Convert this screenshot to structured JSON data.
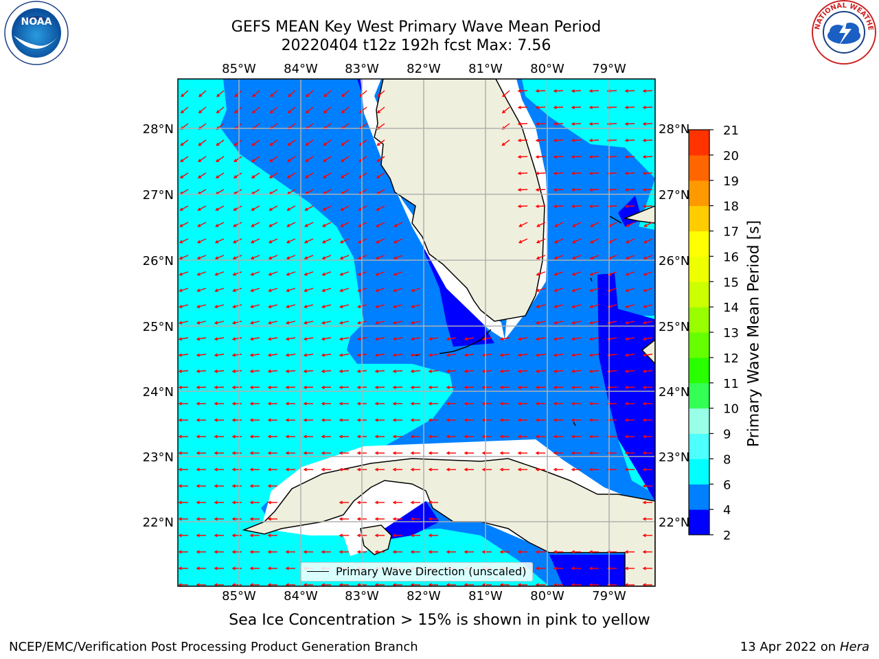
{
  "title": {
    "line1": "GEFS MEAN Key West Primary Wave Mean Period",
    "line2": "20220404 t12z 192h fcst   Max: 7.56"
  },
  "map": {
    "lon_labels": [
      "85°W",
      "84°W",
      "83°W",
      "82°W",
      "81°W",
      "80°W",
      "79°W"
    ],
    "lat_labels": [
      "28°N",
      "27°N",
      "26°N",
      "25°N",
      "24°N",
      "23°N",
      "22°N"
    ],
    "legend_label": "Primary Wave Direction (unscaled)",
    "colors": {
      "ocean_light": "#00ffff",
      "ocean_mid": "#0080ff",
      "ocean_dark": "#0000ff",
      "land": "#efefdd",
      "arrow": "#ff0000",
      "grid": "#b0b0b0"
    }
  },
  "colorbar": {
    "label": "Primary Wave Mean Period [s]",
    "ticks": [
      "2",
      "4",
      "6",
      "8",
      "9",
      "10",
      "11",
      "12",
      "13",
      "14",
      "15",
      "16",
      "17",
      "18",
      "19",
      "20",
      "21"
    ],
    "colors": [
      "#0000ff",
      "#0080ff",
      "#00ffff",
      "#4dffff",
      "#99ffe6",
      "#33ff55",
      "#2aff00",
      "#66ff00",
      "#99ff00",
      "#ccff00",
      "#eeff00",
      "#ffff00",
      "#ffcc00",
      "#ff9900",
      "#ff6600",
      "#ff3300"
    ]
  },
  "footer": {
    "center": "Sea Ice Concentration > 15% is shown in pink to yellow",
    "left": "NCEP/EMC/Verification Post Processing Product Generation Branch",
    "right_date": "13 Apr 2022 on ",
    "right_host": "Hera"
  },
  "logos": {
    "noaa": "NOAA",
    "nws": "NATIONAL WEATHER SERVICE"
  }
}
